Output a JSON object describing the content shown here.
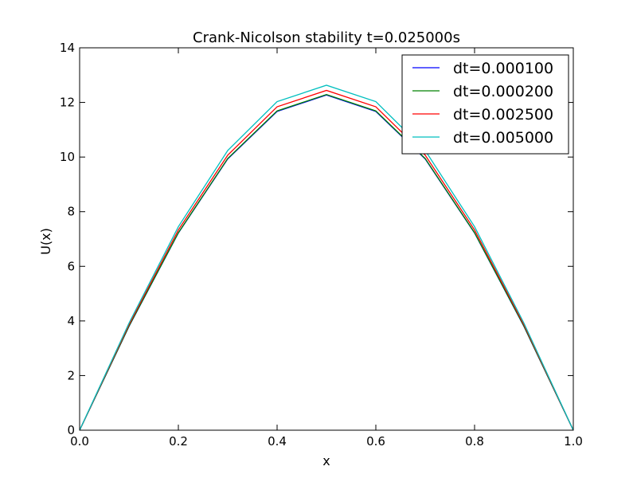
{
  "chart_data": {
    "type": "line",
    "title": "Crank-Nicolson stability t=0.025000s",
    "xlabel": "x",
    "ylabel": "U(x)",
    "xlim": [
      0.0,
      1.0
    ],
    "ylim": [
      0,
      14
    ],
    "xticks": [
      "0.0",
      "0.2",
      "0.4",
      "0.6",
      "0.8",
      "1.0"
    ],
    "yticks": [
      "0",
      "2",
      "4",
      "6",
      "8",
      "10",
      "12",
      "14"
    ],
    "grid": false,
    "legend_position": "top-right",
    "x": [
      0.0,
      0.1,
      0.2,
      0.3,
      0.4,
      0.5,
      0.6,
      0.7,
      0.8,
      0.9,
      1.0
    ],
    "series": [
      {
        "name": "dt=0.000100",
        "color": "#0000ff",
        "values": [
          0.0,
          3.8,
          7.22,
          9.93,
          11.67,
          12.27,
          11.67,
          9.93,
          7.22,
          3.8,
          0.0
        ]
      },
      {
        "name": "dt=0.000200",
        "color": "#008000",
        "values": [
          0.0,
          3.81,
          7.23,
          9.95,
          11.69,
          12.29,
          11.69,
          9.95,
          7.23,
          3.81,
          0.0
        ]
      },
      {
        "name": "dt=0.002500",
        "color": "#ff0000",
        "values": [
          0.0,
          3.86,
          7.33,
          10.07,
          11.84,
          12.44,
          11.84,
          10.07,
          7.33,
          3.86,
          0.0
        ]
      },
      {
        "name": "dt=0.005000",
        "color": "#00bfbf",
        "values": [
          0.0,
          3.92,
          7.45,
          10.24,
          12.03,
          12.63,
          12.03,
          10.24,
          7.45,
          3.92,
          0.0
        ]
      }
    ]
  }
}
